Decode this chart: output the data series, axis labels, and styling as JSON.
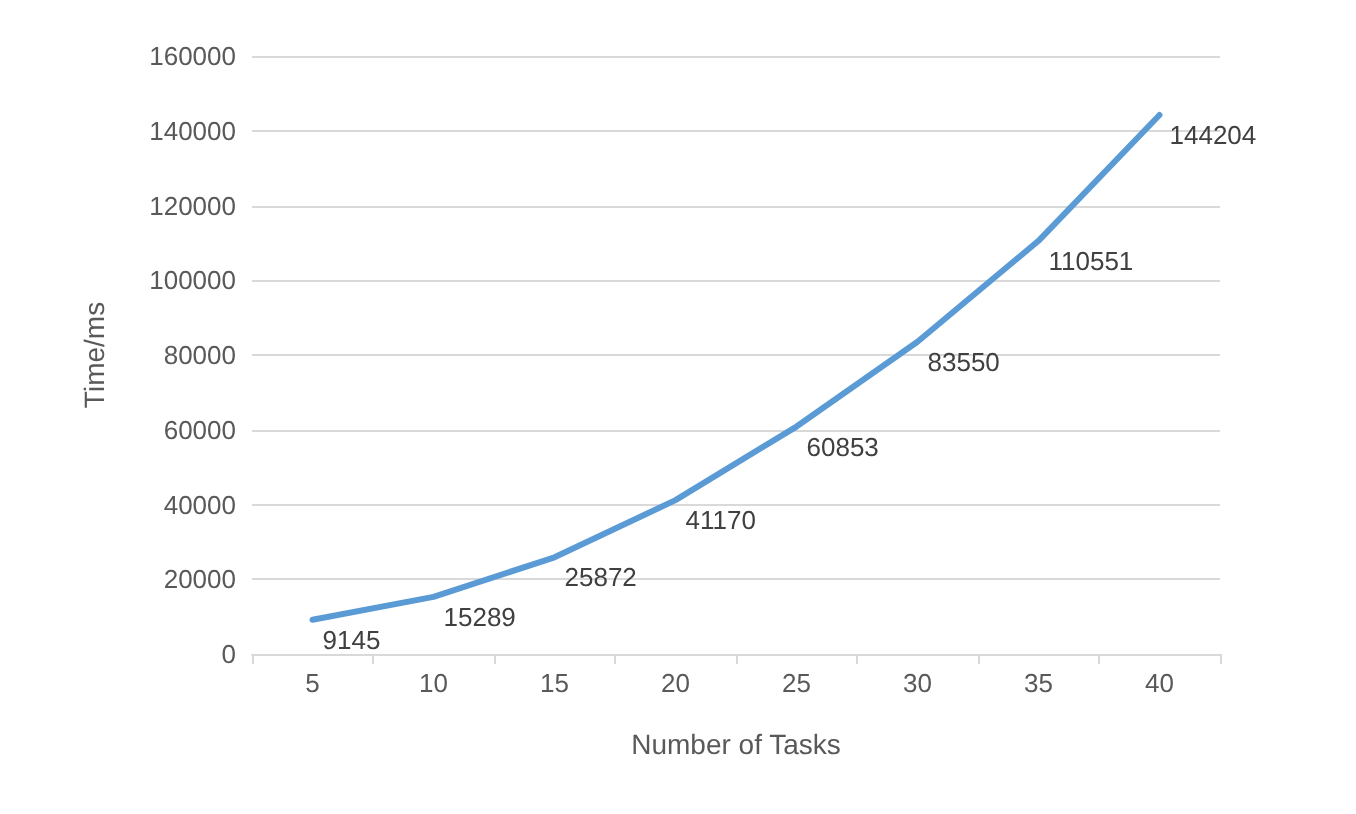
{
  "chart_data": {
    "type": "line",
    "xlabel": "Number of Tasks",
    "ylabel": "Time/ms",
    "categories": [
      "5",
      "10",
      "15",
      "20",
      "25",
      "30",
      "35",
      "40"
    ],
    "series": [
      {
        "color": "#5b9bd5",
        "values": [
          9145,
          15289,
          25872,
          41170,
          60853,
          83550,
          110551,
          144204
        ]
      }
    ],
    "ylim": [
      0,
      160000
    ],
    "yticks": [
      0,
      20000,
      40000,
      60000,
      80000,
      100000,
      120000,
      140000,
      160000
    ],
    "grid": "y",
    "data_labels": true,
    "marker": "none",
    "line_style": "solid"
  }
}
